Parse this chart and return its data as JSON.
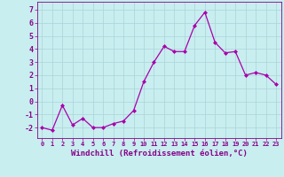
{
  "x": [
    0,
    1,
    2,
    3,
    4,
    5,
    6,
    7,
    8,
    9,
    10,
    11,
    12,
    13,
    14,
    15,
    16,
    17,
    18,
    19,
    20,
    21,
    22,
    23
  ],
  "y": [
    -2.0,
    -2.2,
    -0.3,
    -1.8,
    -1.3,
    -2.0,
    -2.0,
    -1.7,
    -1.5,
    -0.7,
    1.5,
    3.0,
    4.2,
    3.8,
    3.8,
    5.8,
    6.8,
    4.5,
    3.7,
    3.8,
    2.0,
    2.2,
    2.0,
    1.3
  ],
  "line_color": "#aa00aa",
  "marker": "D",
  "marker_size": 2,
  "bg_color": "#c8eef0",
  "grid_color": "#aad4d8",
  "xlabel": "Windchill (Refroidissement éolien,°C)",
  "ylabel_ticks": [
    -2,
    -1,
    0,
    1,
    2,
    3,
    4,
    5,
    6,
    7
  ],
  "xlim": [
    -0.5,
    23.5
  ],
  "ylim": [
    -2.8,
    7.6
  ],
  "xlabel_color": "#880088",
  "tick_color": "#880088",
  "xtick_fontsize": 5.0,
  "ytick_fontsize": 6.0,
  "label_fontsize": 6.5
}
